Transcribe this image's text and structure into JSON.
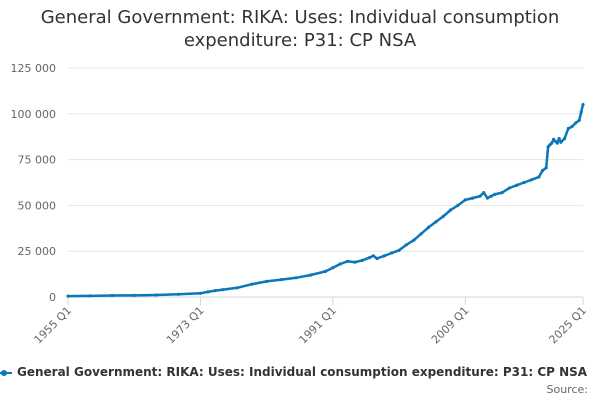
{
  "chart_data": {
    "type": "line",
    "title_line1": "General Government: RIKA: Uses: Individual consumption",
    "title_line2": "expenditure: P31: CP NSA",
    "source_label": "Source:",
    "y_ticks": [
      "0",
      "25 000",
      "50 000",
      "75 000",
      "100 000",
      "125 000"
    ],
    "x_ticks": [
      "1955 Q1",
      "1973 Q1",
      "1991 Q1",
      "2009 Q1",
      "2025 Q1"
    ],
    "ylim": [
      0,
      125000
    ],
    "xlim": [
      1955.0,
      2025.0
    ],
    "legend_position": "bottom",
    "series": [
      {
        "name": "General Government: RIKA: Uses: Individual consumption expenditure: P31: CP NSA",
        "color": "#0a77b8",
        "x": [
          1955.0,
          1958.0,
          1961.0,
          1964.0,
          1967.0,
          1970.0,
          1973.0,
          1974.0,
          1975.0,
          1976.0,
          1978.0,
          1980.0,
          1982.0,
          1984.0,
          1986.0,
          1988.0,
          1990.0,
          1991.0,
          1992.0,
          1993.0,
          1994.0,
          1995.0,
          1996.0,
          1996.5,
          1997.0,
          1998.0,
          1999.0,
          2000.0,
          2001.0,
          2002.0,
          2003.0,
          2004.0,
          2005.0,
          2006.0,
          2007.0,
          2008.0,
          2009.0,
          2010.0,
          2011.0,
          2011.5,
          2012.0,
          2012.5,
          2013.0,
          2014.0,
          2015.0,
          2016.0,
          2017.0,
          2018.0,
          2019.0,
          2019.5,
          2020.0,
          2020.25,
          2020.5,
          2020.75,
          2021.0,
          2021.25,
          2021.5,
          2021.75,
          2022.0,
          2022.5,
          2023.0,
          2023.5,
          2024.0,
          2024.5,
          2024.75,
          2025.0
        ],
        "values": [
          500,
          600,
          800,
          900,
          1100,
          1500,
          2000,
          2800,
          3500,
          4000,
          5000,
          7000,
          8500,
          9500,
          10500,
          12000,
          14000,
          16000,
          18000,
          19500,
          19000,
          20000,
          21500,
          22500,
          21000,
          22500,
          24000,
          25500,
          28500,
          31000,
          34500,
          38000,
          41000,
          44000,
          47500,
          50000,
          53000,
          54000,
          55000,
          57000,
          54000,
          55000,
          56000,
          57000,
          59500,
          61000,
          62500,
          64000,
          65500,
          69000,
          70500,
          82000,
          83000,
          84000,
          86000,
          85000,
          84000,
          86500,
          84500,
          86500,
          92000,
          93000,
          95000,
          96500,
          101000,
          105000
        ]
      }
    ]
  }
}
